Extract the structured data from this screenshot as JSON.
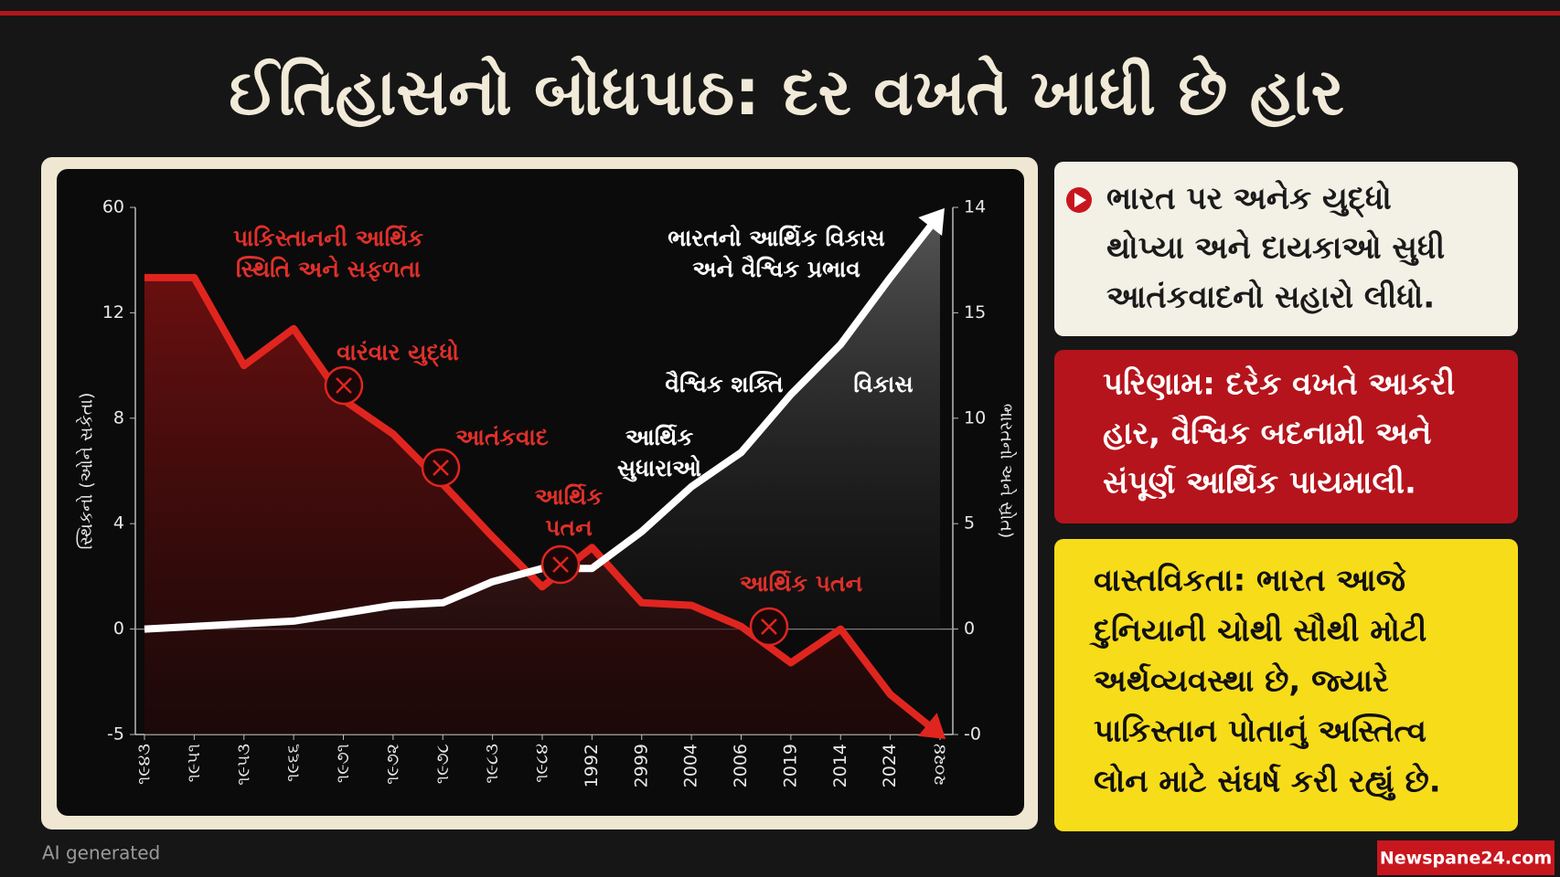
{
  "header": {
    "title": "ઈતિહાસનો બોધપાઠ: દર વખતે ખાધી છે હાર"
  },
  "chart_data": {
    "type": "line",
    "y_axis_label": "સ્થિકનો (ઓને સકેતા)",
    "y2_axis_label": "ભારતનો અને સ્રોત)",
    "categories": [
      "૧૯૪૩",
      "૧૯૫૧",
      "૧૯૫૩",
      "૧૯૬૬",
      "૧૯૭૧",
      "૧૯૭૨",
      "૧૯૭૮",
      "૧૯૮૩",
      "૧૯૮૪",
      "1992",
      "2999",
      "2004",
      "2006",
      "2019",
      "2014",
      "2024",
      "૨૦૨૪"
    ],
    "series": [
      {
        "color": "#e0251f",
        "values": [
          28,
          28,
          10,
          11.4,
          8.7,
          7.4,
          5.5,
          3.5,
          1.6,
          3.1,
          1.0,
          0.9,
          0.1,
          -1.6,
          0,
          -3.1,
          -5
        ]
      },
      {
        "color": "#ffffff",
        "values": [
          0,
          0.1,
          0.2,
          0.3,
          0.6,
          0.9,
          1.0,
          1.8,
          2.3,
          2.3,
          3.7,
          5.4,
          6.7,
          8.9,
          10.8,
          28,
          57
        ]
      }
    ],
    "ylim": [
      -5,
      60
    ],
    "yticks": [
      60,
      12,
      8,
      4,
      0,
      -5
    ],
    "y2lim": [
      0,
      14
    ],
    "y2ticks": [
      14,
      15,
      10,
      5,
      0,
      {
        "value": 0,
        "label": "-0"
      }
    ],
    "annotations": [
      {
        "lines": [
          "પાકિસ્તાનની આર્થિક",
          "સ્થિતિ અને સફળતા"
        ],
        "color": "#e0302a"
      },
      {
        "lines": [
          "વારંવાર યુદ્ધો"
        ],
        "color": "#e0302a"
      },
      {
        "lines": [
          "આતંકવાદ"
        ],
        "color": "#e0302a"
      },
      {
        "lines": [
          "આર્થિક",
          "પતન"
        ],
        "color": "#e0302a"
      },
      {
        "lines": [
          "આર્થિક પતન"
        ],
        "color": "#e0302a"
      },
      {
        "lines": [
          "ભારતનો આર્થિક વિકાસ",
          "અને વૈશ્વિક પ્રભાવ"
        ],
        "color": "#ffffff"
      },
      {
        "lines": [
          "વૈશ્વિક શક્તિ"
        ],
        "color": "#ffffff"
      },
      {
        "lines": [
          "વિકાસ"
        ],
        "color": "#ffffff"
      },
      {
        "lines": [
          "આર્થિક",
          "સુધારાઓ"
        ],
        "color": "#ffffff"
      }
    ]
  },
  "panels": [
    {
      "lines": [
        "ભારત પર અનેક યુદ્ધો",
        "થોપ્યા અને દાયકાઓ સુધી",
        "આતંકવાદનો સહારો લીધો."
      ]
    },
    {
      "lines": [
        "પરિણામ: દરેક વખતે આકરી",
        "હાર, વૈશ્વિક બદનામી અને",
        "સંપૂર્ણ આર્થિક પાયમાલી."
      ]
    },
    {
      "lines": [
        "વાસ્તવિકતા: ભારત આજે",
        "દુનિયાની ચોથી સૌથી મોટી",
        "અર્થવ્યવસ્થા છે, જ્યારે",
        "પાકિસ્તાન પોતાનું અસ્તિત્વ",
        "લોન માટે સંઘર્ષ કરી રહ્યું છે."
      ]
    }
  ],
  "footer": {
    "note": "AI generated",
    "source": "Newspane24.com"
  }
}
